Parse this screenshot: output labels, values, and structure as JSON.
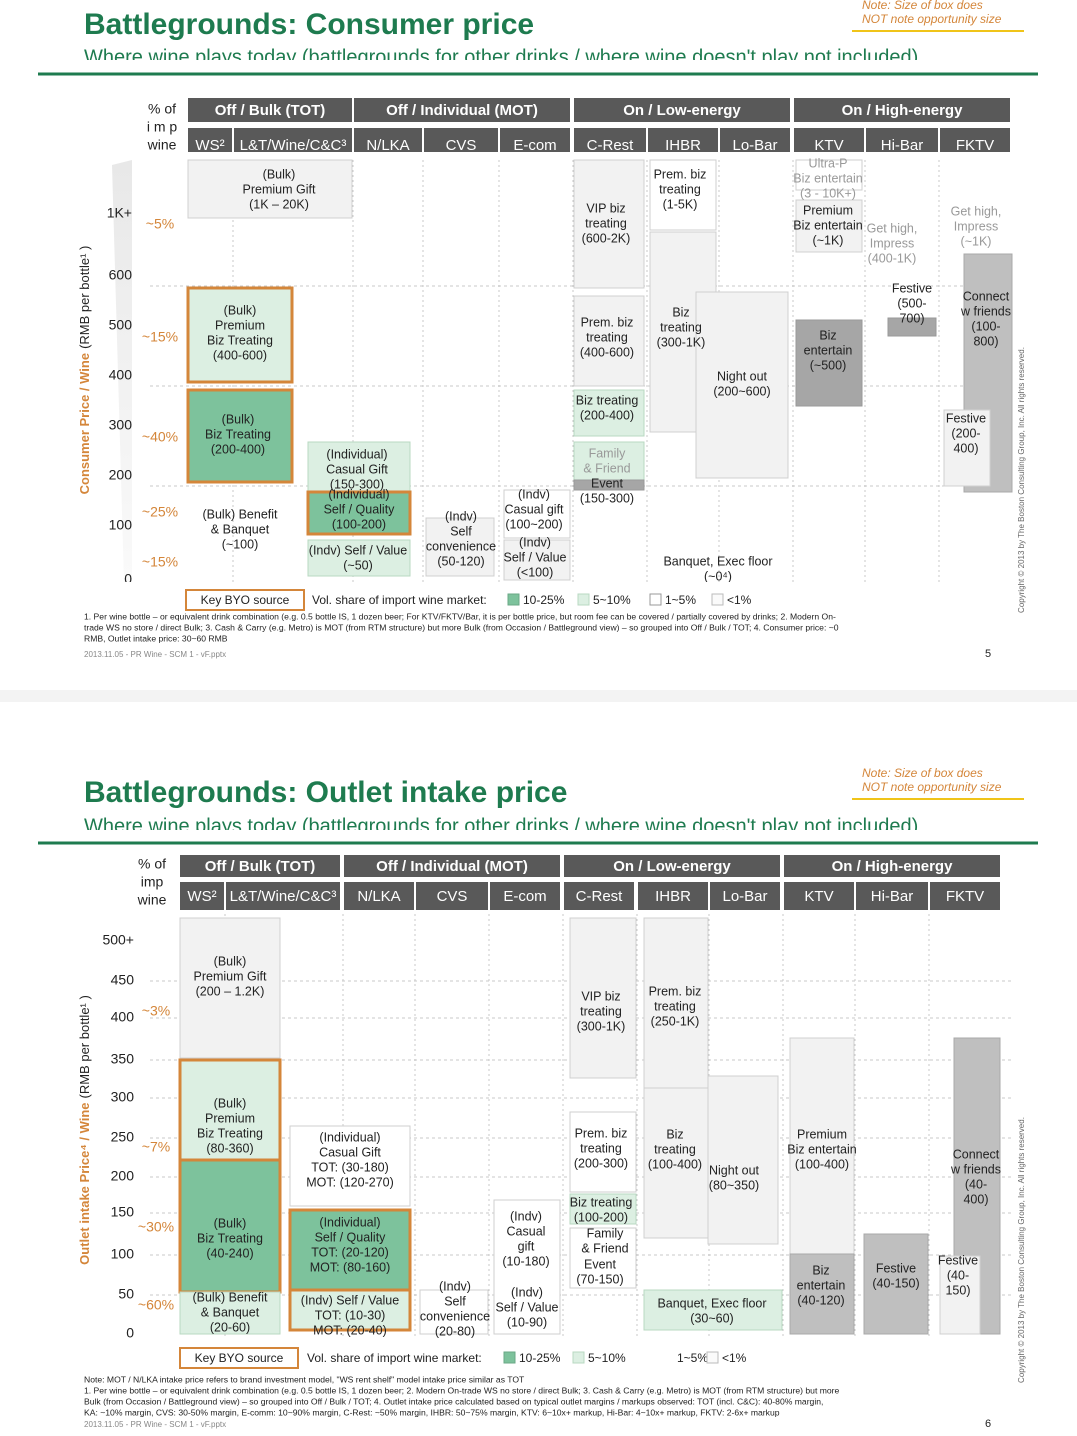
{
  "slides": [
    {
      "note": [
        "Note: Size of box does",
        "NOT note opportunity size"
      ],
      "title": "Battlegrounds: Consumer price",
      "subtitle": "Where wine plays today (battlegrounds for other drinks / where wine doesn't play not included)",
      "imp_header": [
        "% of",
        "i m p",
        "wine"
      ],
      "y_axis_title": [
        "Consumer Price / Wine",
        "(RMB per bottle¹ )"
      ],
      "groups": [
        "Off / Bulk (TOT)",
        "Off / Individual (MOT)",
        "On / Low-energy",
        "On / High-energy"
      ],
      "columns": [
        "WS²",
        "L&T/Wine/C&C³",
        "N/LKA",
        "CVS",
        "E-com",
        "C-Rest",
        "IHBR",
        "Lo-Bar",
        "KTV",
        "Hi-Bar",
        "FKTV"
      ],
      "y_labels": [
        "1K+",
        600,
        500,
        400,
        300,
        200,
        100,
        0
      ],
      "pct_labels": [
        "~5%",
        "~15%",
        "~40%",
        "~25%",
        "~15%"
      ],
      "boxes": [
        {
          "lines": [
            "(Bulk)",
            "Premium Gift",
            "(1K – 20K)"
          ]
        },
        {
          "lines": [
            "(Bulk)",
            "Premium",
            "Biz Treating",
            "(400-600)"
          ]
        },
        {
          "lines": [
            "(Bulk)",
            "Biz Treating",
            "(200-400)"
          ]
        },
        {
          "lines": [
            "(Bulk) Benefit",
            "& Banquet",
            "(~100)"
          ]
        },
        {
          "lines": [
            "(Individual)",
            "Casual Gift",
            "(150-300)"
          ]
        },
        {
          "lines": [
            "(Individual)",
            "Self / Quality",
            "(100-200)"
          ]
        },
        {
          "lines": [
            "(Indv) Self / Value",
            "(~50)"
          ]
        },
        {
          "lines": [
            "(Indv)",
            "Self",
            "convenience",
            "(50-120)"
          ]
        },
        {
          "lines": [
            "(Indv)",
            "Casual gift",
            "(100~200)"
          ]
        },
        {
          "lines": [
            "(Indv)",
            "Self / Value",
            "(<100)"
          ]
        },
        {
          "lines": [
            "VIP biz",
            "treating",
            "(600-2K)"
          ]
        },
        {
          "lines": [
            "Prem. biz",
            "treating",
            "(400-600)"
          ]
        },
        {
          "lines": [
            "Biz treating",
            "(200-400)"
          ]
        },
        {
          "lines": [
            "Family",
            "& Friend"
          ]
        },
        {
          "lines": [
            "Event",
            "(150-300)"
          ]
        },
        {
          "lines": [
            "Prem. biz",
            "treating",
            "(1-5K)"
          ]
        },
        {
          "lines": [
            "Biz",
            "treating",
            "(300-1K)"
          ]
        },
        {
          "lines": [
            "Night out",
            "(200~600)"
          ]
        },
        {
          "lines": [
            "Banquet, Exec floor",
            "(~0⁴)"
          ]
        },
        {
          "lines": [
            "Ultra-P",
            "Biz entertain",
            "(3 - 10K+)"
          ]
        },
        {
          "lines": [
            "Premium",
            "Biz entertain",
            "(~1K)"
          ]
        },
        {
          "lines": [
            "Biz",
            "entertain",
            "(~500)"
          ]
        },
        {
          "lines": [
            "Get high,",
            "Impress",
            "(400-1K)"
          ]
        },
        {
          "lines": [
            "Festive",
            "(500-",
            "700)"
          ]
        },
        {
          "lines": [
            "Get high,",
            "Impress",
            "(~1K)"
          ]
        },
        {
          "lines": [
            "Connect",
            "w friends",
            "(100-",
            "800)"
          ]
        },
        {
          "lines": [
            "Festive",
            "(200-",
            "400)"
          ]
        }
      ],
      "legend": {
        "key": "Key BYO source",
        "vol": "Vol. share of import wine market:",
        "items": [
          "10-25%",
          "5~10%",
          "1~5%",
          "<1%"
        ]
      },
      "footnotes": [
        "1. Per wine bottle – or equivalent drink combination (e.g. 0.5 bottle IS, 1 dozen beer; For KTV/FKTV/Bar, it is per bottle price, but room fee can be covered / partially covered by drinks; 2. Modern On-",
        "trade WS no store / direct Bulk; 3. Cash & Carry (e.g. Metro) is MOT (from RTM structure) but more Bulk (from Occasion / Battleground view) – so grouped into Off / Bulk / TOT; 4. Consumer price: ~0",
        "RMB, Outlet intake price: 30~60 RMB"
      ],
      "footer": "2013.11.05 - PR Wine - SCM 1 - vF.pptx",
      "page": 5,
      "copyright": "Copyright © 2013 by The Boston Consulting Group, Inc. All rights reserved."
    },
    {
      "note": [
        "Note: Size of box does",
        "NOT note opportunity size"
      ],
      "title": "Battlegrounds: Outlet intake price",
      "subtitle": "Where wine plays today (battlegrounds for other drinks / where wine doesn't play not included)",
      "imp_header": [
        "% of",
        "imp",
        "wine"
      ],
      "y_axis_title": [
        "Outlet intake Price⁴ / Wine",
        "(RMB per bottle¹ )"
      ],
      "groups": [
        "Off / Bulk (TOT)",
        "Off / Individual (MOT)",
        "On / Low-energy",
        "On / High-energy"
      ],
      "columns": [
        "WS²",
        "L&T/Wine/C&C³",
        "N/LKA",
        "CVS",
        "E-com",
        "C-Rest",
        "IHBR",
        "Lo-Bar",
        "KTV",
        "Hi-Bar",
        "FKTV"
      ],
      "y_labels": [
        "500+",
        450,
        400,
        350,
        300,
        250,
        200,
        150,
        100,
        50,
        0
      ],
      "pct_labels": [
        "~3%",
        "~7%",
        "~30%",
        "~60%"
      ],
      "boxes": [
        {
          "lines": [
            "(Bulk)",
            "Premium Gift",
            "(200 – 1.2K)"
          ]
        },
        {
          "lines": [
            "(Bulk)",
            "Premium",
            "Biz Treating",
            "(80-360)"
          ]
        },
        {
          "lines": [
            "(Bulk)",
            "Biz Treating",
            "(40-240)"
          ]
        },
        {
          "lines": [
            "(Bulk) Benefit",
            "& Banquet",
            "(20-60)"
          ]
        },
        {
          "lines": [
            "(Individual)",
            "Casual Gift",
            "TOT: (30-180)",
            "MOT: (120-270)"
          ]
        },
        {
          "lines": [
            "(Individual)",
            "Self / Quality",
            "TOT: (20-120)",
            "MOT: (80-160)"
          ]
        },
        {
          "lines": [
            "(Indv) Self / Value",
            "TOT: (10-30)",
            "MOT: (20-40)"
          ]
        },
        {
          "lines": [
            "(Indv)",
            "Self",
            "convenience",
            "(20-80)"
          ]
        },
        {
          "lines": [
            "(Indv)",
            "Casual",
            "gift",
            "(10-180)"
          ]
        },
        {
          "lines": [
            "(Indv)",
            "Self / Value",
            "(10-90)"
          ]
        },
        {
          "lines": [
            "VIP biz",
            "treating",
            "(300-1K)"
          ]
        },
        {
          "lines": [
            "Prem. biz",
            "treating",
            "(200-300)"
          ]
        },
        {
          "lines": [
            "Biz treating",
            "(100-200)"
          ]
        },
        {
          "lines": [
            "Family",
            "& Friend"
          ]
        },
        {
          "lines": [
            "Event",
            "(70-150)"
          ]
        },
        {
          "lines": [
            "Prem. biz",
            "treating",
            "(250-1K)"
          ]
        },
        {
          "lines": [
            "Biz",
            "treating",
            "(100-400)"
          ]
        },
        {
          "lines": [
            "Night out",
            "(80~350)"
          ]
        },
        {
          "lines": [
            "Banquet, Exec floor",
            "(30~60)"
          ]
        },
        {
          "lines": [
            "Premium",
            "Biz entertain",
            "(100-400)"
          ]
        },
        {
          "lines": [
            "Biz",
            "entertain",
            "(40-120)"
          ]
        },
        {
          "lines": [
            "Festive",
            "(40-150)"
          ]
        },
        {
          "lines": [
            "Connect",
            "w friends",
            "(40-",
            "400)"
          ]
        },
        {
          "lines": [
            "Festive",
            "(40-",
            "150)"
          ]
        }
      ],
      "legend": {
        "key": "Key BYO source",
        "vol": "Vol. share of import wine market:",
        "items": [
          "10-25%",
          "5~10%",
          "1~5%",
          "<1%"
        ]
      },
      "footnotes": [
        "Note: MOT / N/LKA intake price refers to brand investment model, \"WS rent shelf\" model intake price similar as TOT",
        "1. Per wine bottle – or equivalent drink combination (e.g. 0.5 bottle IS, 1 dozen beer; 2. Modern On-trade WS no store / direct Bulk; 3. Cash & Carry (e.g. Metro) is MOT (from RTM structure) but more",
        "Bulk (from Occasion / Battleground view) – so grouped into Off / Bulk / TOT; 4. Outlet intake price calculated based on typical outlet margins / markups observed: TOT (incl. C&C): 40-80% margin,",
        "KA: ~10% margin, CVS: 30-50% margin, E-comm: 10~90% margin, C-Rest: ~50% margin, IHBR: 50~75% margin, KTV: 6~10x+ markup, Hi-Bar: 4~10x+ markup, FKTV: 2-6x+ markup"
      ],
      "footer": "2013.11.05 - PR Wine - SCM 1 - vF.pptx",
      "page": 6,
      "copyright": "Copyright © 2013 by The Boston Consulting Group, Inc. All rights reserved."
    }
  ]
}
